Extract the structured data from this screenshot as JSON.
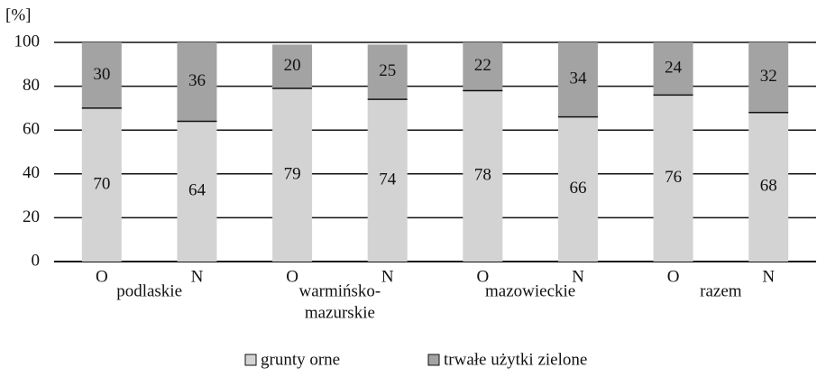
{
  "chart_data": {
    "type": "stacked_bar",
    "y_label": "[%]",
    "categories": [
      "O",
      "N",
      "O",
      "N",
      "O",
      "N",
      "O",
      "N"
    ],
    "group_labels": [
      [
        "podlaskie"
      ],
      [
        "warmińsko-",
        "mazurskie"
      ],
      [
        "mazowieckie"
      ],
      [
        "razem"
      ]
    ],
    "series": [
      {
        "name": "grunty orne",
        "color": "#d3d3d3",
        "values": [
          70,
          64,
          79,
          74,
          78,
          66,
          76,
          68
        ]
      },
      {
        "name": "trwałe użytki zielone",
        "color": "#a3a3a3",
        "values": [
          30,
          36,
          20,
          25,
          22,
          34,
          24,
          32
        ]
      }
    ],
    "ylim": [
      0,
      100
    ],
    "yticks": [
      0,
      20,
      40,
      60,
      80,
      100
    ],
    "grid": true
  }
}
